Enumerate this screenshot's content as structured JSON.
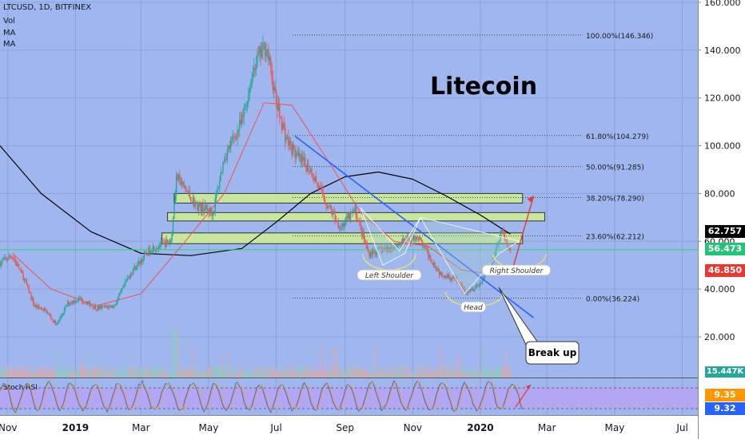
{
  "header": {
    "symbol": "LTCUSD, 1D, BITFINEX",
    "vol": "Vol",
    "ma1": "MA",
    "ma2": "MA"
  },
  "colors": {
    "background": "#9fb7ee",
    "up": "#26a69a",
    "down": "#ef5350",
    "ma_slow": "#000000",
    "ma_fast": "#ef5350",
    "zone": "#c8e6a0",
    "trendline": "#2962ff",
    "rsi_band": "#b3a6f2"
  },
  "watermark": "Litecoin",
  "callout": "Break up",
  "pattern_labels": {
    "left": "Left Shoulder",
    "head": "Head",
    "right": "Right Shoulder"
  },
  "fib_levels": [
    {
      "label": "100.00%(146.346)",
      "price": 146.346
    },
    {
      "label": "61.80%(104.279)",
      "price": 104.279
    },
    {
      "label": "50.00%(91.285)",
      "price": 91.285
    },
    {
      "label": "38.20%(78.290)",
      "price": 78.29
    },
    {
      "label": "23.60%(62.212)",
      "price": 62.212
    },
    {
      "label": "0.00%(36.224)",
      "price": 36.224
    }
  ],
  "price_tags": [
    {
      "value": "62.757",
      "bg": "#000000",
      "fg": "#ffffff"
    },
    {
      "value": "56.473",
      "bg": "#26c27a",
      "fg": "#ffffff"
    },
    {
      "value": "46.850",
      "bg": "#e53935",
      "fg": "#ffffff"
    }
  ],
  "vol_tag": {
    "value": "15.447K",
    "bg": "#26a69a"
  },
  "rsi": {
    "label": "Stoch RSI",
    "tag1": {
      "value": "9.35",
      "bg": "#ff9800"
    },
    "tag2": {
      "value": "9.32",
      "bg": "#2962ff"
    }
  },
  "y_axis_ticks": [
    "160.000",
    "140.000",
    "120.000",
    "100.000",
    "80.000",
    "60.000",
    "40.000",
    "20.000"
  ],
  "x_axis_ticks": [
    "Nov",
    "2019",
    "Mar",
    "May",
    "Jul",
    "Sep",
    "Nov",
    "2020",
    "Mar",
    "May",
    "Jul"
  ],
  "chart_data": {
    "type": "candlestick",
    "title": "LTCUSD, 1D, BITFINEX",
    "ylim": [
      0,
      163
    ],
    "y_scale": "linear",
    "x_range": [
      "2018-10-25",
      "2020-07-15"
    ],
    "price_path": [
      [
        "2018-10-25",
        51
      ],
      [
        "2018-11-05",
        54
      ],
      [
        "2018-11-15",
        45
      ],
      [
        "2018-11-25",
        33
      ],
      [
        "2018-12-05",
        31
      ],
      [
        "2018-12-15",
        25
      ],
      [
        "2018-12-25",
        34
      ],
      [
        "2019-01-05",
        36
      ],
      [
        "2019-01-20",
        32
      ],
      [
        "2019-02-05",
        33
      ],
      [
        "2019-02-20",
        47
      ],
      [
        "2019-03-10",
        57
      ],
      [
        "2019-03-28",
        60
      ],
      [
        "2019-04-02",
        87
      ],
      [
        "2019-04-20",
        75
      ],
      [
        "2019-05-05",
        72
      ],
      [
        "2019-05-15",
        95
      ],
      [
        "2019-05-31",
        110
      ],
      [
        "2019-06-12",
        135
      ],
      [
        "2019-06-22",
        142
      ],
      [
        "2019-07-01",
        118
      ],
      [
        "2019-07-10",
        103
      ],
      [
        "2019-07-20",
        95
      ],
      [
        "2019-08-01",
        90
      ],
      [
        "2019-08-15",
        76
      ],
      [
        "2019-08-28",
        66
      ],
      [
        "2019-09-10",
        73
      ],
      [
        "2019-09-22",
        55
      ],
      [
        "2019-10-10",
        57
      ],
      [
        "2019-10-25",
        60
      ],
      [
        "2019-11-05",
        62
      ],
      [
        "2019-11-25",
        47
      ],
      [
        "2019-12-10",
        44
      ],
      [
        "2019-12-18",
        39
      ],
      [
        "2019-12-31",
        42
      ],
      [
        "2020-01-10",
        50
      ],
      [
        "2020-01-20",
        64
      ],
      [
        "2020-01-28",
        56
      ]
    ],
    "ma_slow": [
      [
        "2018-10-25",
        100
      ],
      [
        "2018-12-01",
        80
      ],
      [
        "2019-01-15",
        64
      ],
      [
        "2019-03-01",
        55
      ],
      [
        "2019-04-15",
        54
      ],
      [
        "2019-05-31",
        57
      ],
      [
        "2019-07-01",
        68
      ],
      [
        "2019-08-01",
        80
      ],
      [
        "2019-09-01",
        87
      ],
      [
        "2019-10-01",
        89
      ],
      [
        "2019-11-01",
        86
      ],
      [
        "2019-12-01",
        79
      ],
      [
        "2020-01-01",
        71
      ],
      [
        "2020-01-28",
        63
      ]
    ],
    "ma_fast": [
      [
        "2018-11-05",
        55
      ],
      [
        "2018-12-10",
        40
      ],
      [
        "2019-01-20",
        33
      ],
      [
        "2019-03-01",
        38
      ],
      [
        "2019-04-10",
        60
      ],
      [
        "2019-05-15",
        80
      ],
      [
        "2019-06-20",
        118
      ],
      [
        "2019-07-15",
        117
      ],
      [
        "2019-08-15",
        95
      ],
      [
        "2019-09-15",
        72
      ],
      [
        "2019-10-15",
        60
      ],
      [
        "2019-11-15",
        58
      ],
      [
        "2019-12-15",
        48
      ],
      [
        "2020-01-15",
        46
      ],
      [
        "2020-01-28",
        48
      ]
    ],
    "zones": [
      {
        "from": "2019-03-31",
        "to": "2020-02-08",
        "low": 76,
        "high": 80
      },
      {
        "from": "2019-03-25",
        "to": "2020-02-28",
        "low": 68.5,
        "high": 72
      },
      {
        "from": "2019-03-20",
        "to": "2020-02-08",
        "low": 59,
        "high": 63.5
      }
    ],
    "horizontal_line": 56.473,
    "trendline": [
      [
        "2019-07-18",
        104
      ],
      [
        "2020-02-18",
        28
      ]
    ],
    "projection": [
      [
        "2020-01-31",
        50
      ],
      [
        "2020-02-18",
        79
      ]
    ],
    "annotations": [
      "Left Shoulder",
      "Head",
      "Right Shoulder",
      "Break up",
      "Litecoin"
    ]
  }
}
